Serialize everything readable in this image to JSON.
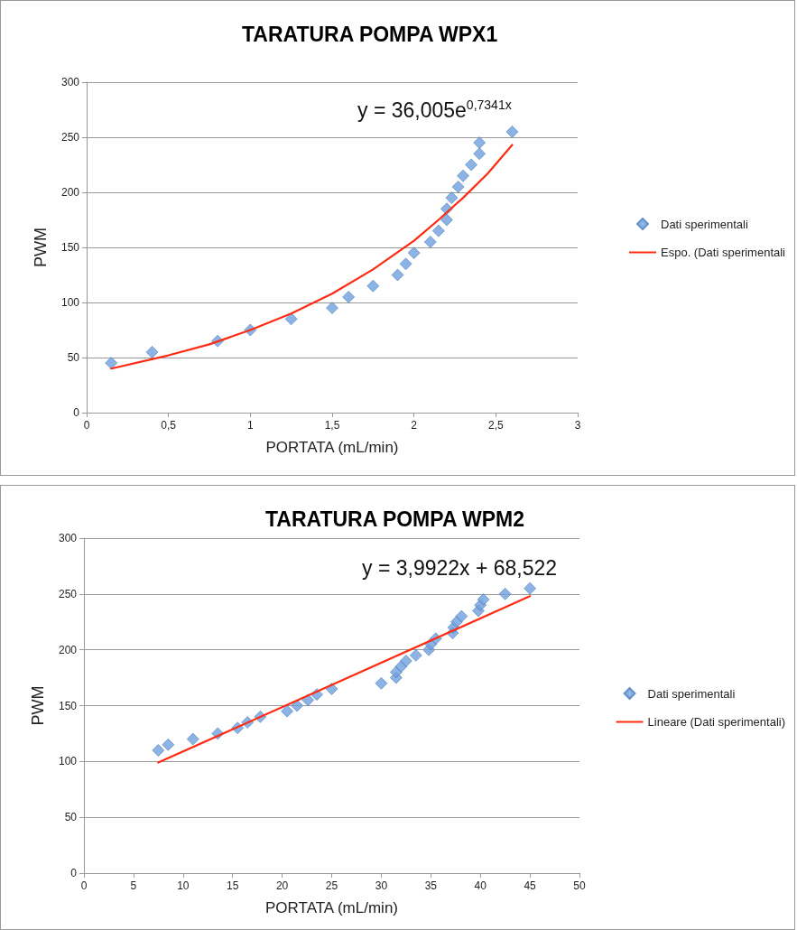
{
  "chart_data": [
    {
      "type": "scatter",
      "title": "TARATURA POMPA WPX1",
      "xlabel": "PORTATA (mL/min)",
      "ylabel": "PWM",
      "annotations": [
        "y = 36,005e$^{0,7341x}$"
      ],
      "xlim": [
        0,
        3
      ],
      "xticks": [
        0,
        {
          "value": 0.5,
          "label": "0,5"
        },
        1,
        {
          "value": 1.5,
          "label": "1,5"
        },
        2,
        {
          "value": 2.5,
          "label": "2,5"
        },
        3
      ],
      "ylim": [
        0,
        300
      ],
      "yticks": [
        0,
        50,
        100,
        150,
        200,
        250,
        300
      ],
      "grid": "y",
      "legend": "right",
      "series": [
        {
          "name": "Dati sperimentali",
          "marker": "diamond",
          "color": "#6fa0dc",
          "x": [
            0.15,
            0.4,
            0.8,
            1.0,
            1.25,
            1.5,
            1.6,
            1.75,
            1.9,
            1.95,
            2.0,
            2.1,
            2.15,
            2.2,
            2.2,
            2.23,
            2.27,
            2.3,
            2.35,
            2.4,
            2.4,
            2.6
          ],
          "values": [
            45,
            55,
            65,
            75,
            85,
            95,
            105,
            115,
            125,
            135,
            145,
            155,
            165,
            175,
            185,
            195,
            205,
            215,
            225,
            235,
            245,
            255
          ]
        },
        {
          "name": "Espo. (Dati sperimentali",
          "type": "line",
          "marker": "none",
          "color": "#ff2a12",
          "x": [
            0.15,
            0.5,
            0.75,
            1.0,
            1.25,
            1.5,
            1.75,
            2.0,
            2.15,
            2.3,
            2.45,
            2.6
          ],
          "values": [
            40,
            52,
            62,
            75,
            90,
            108,
            130,
            156,
            175,
            195,
            217,
            243
          ]
        }
      ]
    },
    {
      "type": "scatter",
      "title": "TARATURA POMPA WPM2",
      "xlabel": "PORTATA (mL/min)",
      "ylabel": "PWM",
      "annotations": [
        "y = 3,9922x + 68,522"
      ],
      "xlim": [
        0,
        50
      ],
      "xticks": [
        0,
        5,
        10,
        15,
        20,
        25,
        30,
        35,
        40,
        45,
        50
      ],
      "ylim": [
        0,
        300
      ],
      "yticks": [
        0,
        50,
        100,
        150,
        200,
        250,
        300
      ],
      "grid": "y",
      "legend": "right",
      "series": [
        {
          "name": "Dati sperimentali",
          "marker": "diamond",
          "color": "#6fa0dc",
          "x": [
            7.5,
            8.5,
            11,
            13.5,
            15.5,
            16.5,
            17.8,
            20.5,
            21.5,
            22.6,
            23.5,
            25,
            30,
            31.5,
            31.5,
            32,
            32.5,
            33.5,
            34.8,
            35,
            35.5,
            37.2,
            37.3,
            37.6,
            38.1,
            39.8,
            40,
            40.3,
            42.5,
            45
          ],
          "values": [
            110,
            115,
            120,
            125,
            130,
            135,
            140,
            145,
            150,
            155,
            160,
            165,
            170,
            175,
            180,
            185,
            190,
            195,
            200,
            205,
            210,
            215,
            220,
            225,
            230,
            235,
            240,
            245,
            250,
            255
          ]
        },
        {
          "name": "Lineare (Dati sperimentali)",
          "type": "line",
          "marker": "none",
          "color": "#ff2a12",
          "x": [
            7.5,
            45
          ],
          "values": [
            99,
            248
          ]
        }
      ]
    }
  ]
}
